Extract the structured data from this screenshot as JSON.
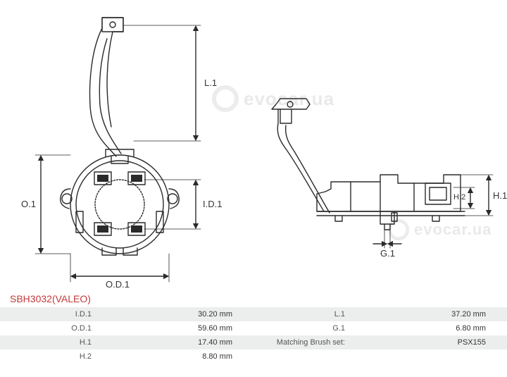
{
  "part": {
    "number": "SBH3032",
    "maker": "VALEO",
    "title_color": "#c23a3a"
  },
  "watermark": {
    "text": "evocar.ua",
    "color": "#888888"
  },
  "dims": {
    "L1": "L.1",
    "O1": "O.1",
    "ID1": "I.D.1",
    "OD1": "O.D.1",
    "G1": "G.1",
    "H1": "H.1",
    "H2": "H.2"
  },
  "diagram": {
    "line_color": "#2a2a2a",
    "line_width": 1.4,
    "arrow_size": 5,
    "bg_color": "#ffffff"
  },
  "specs": {
    "rows": [
      {
        "k1": "I.D.1",
        "v1": "30.20 mm",
        "k2": "L.1",
        "v2": "37.20 mm"
      },
      {
        "k1": "O.D.1",
        "v1": "59.60 mm",
        "k2": "G.1",
        "v2": "6.80 mm"
      },
      {
        "k1": "H.1",
        "v1": "17.40 mm",
        "k2": "Matching Brush set:",
        "v2": "PSX155"
      },
      {
        "k1": "H.2",
        "v1": "8.80 mm",
        "k2": "",
        "v2": ""
      }
    ],
    "odd_bg": "#eceded",
    "even_bg": "#ffffff",
    "text_color": "#333333",
    "key_color": "#555555",
    "fontsize": 11
  }
}
